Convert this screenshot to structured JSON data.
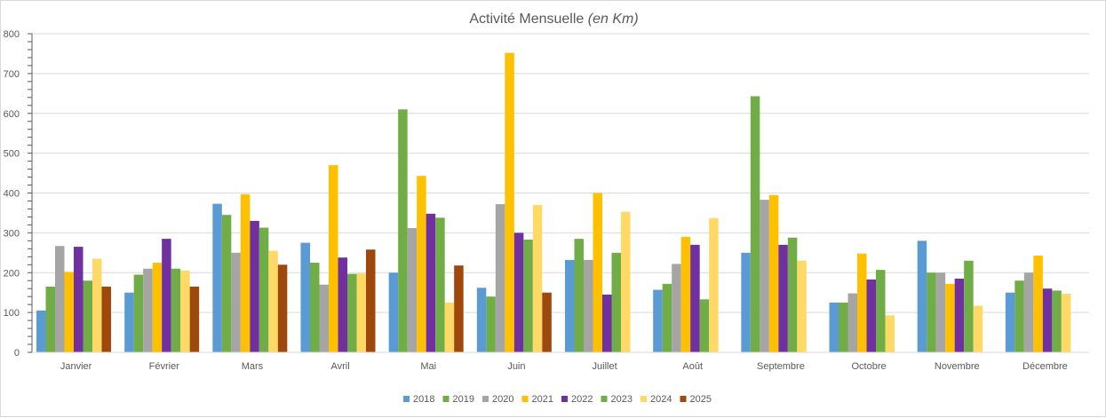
{
  "chart_data": {
    "type": "bar",
    "title": "Activité Mensuelle",
    "title_suffix": "(en Km)",
    "xlabel": "",
    "ylabel": "",
    "ylim": [
      0,
      800
    ],
    "yticks": [
      0,
      100,
      200,
      300,
      400,
      500,
      600,
      700,
      800
    ],
    "grid": true,
    "legend_position": "bottom",
    "categories": [
      "Janvier",
      "Février",
      "Mars",
      "Avril",
      "Mai",
      "Juin",
      "Juillet",
      "Août",
      "Septembre",
      "Octobre",
      "Novembre",
      "Décembre"
    ],
    "series": [
      {
        "name": "2018",
        "color": "#5B9BD5",
        "values": [
          105,
          150,
          373,
          275,
          200,
          162,
          232,
          157,
          250,
          125,
          280,
          150
        ]
      },
      {
        "name": "2019",
        "color": "#70AD47",
        "values": [
          165,
          195,
          345,
          225,
          610,
          140,
          285,
          172,
          643,
          125,
          200,
          180
        ]
      },
      {
        "name": "2020",
        "color": "#A5A5A5",
        "values": [
          267,
          210,
          250,
          170,
          312,
          372,
          232,
          222,
          383,
          148,
          200,
          200
        ]
      },
      {
        "name": "2021",
        "color": "#FFC000",
        "values": [
          202,
          225,
          397,
          470,
          443,
          752,
          400,
          290,
          395,
          248,
          172,
          243
        ]
      },
      {
        "name": "2022",
        "color": "#7030A0",
        "values": [
          265,
          285,
          330,
          238,
          348,
          300,
          145,
          270,
          270,
          183,
          185,
          160
        ]
      },
      {
        "name": "2023",
        "color": "#70AD47",
        "values": [
          180,
          210,
          313,
          197,
          338,
          283,
          250,
          133,
          288,
          207,
          230,
          155
        ]
      },
      {
        "name": "2024",
        "color": "#FFD966",
        "values": [
          235,
          205,
          255,
          198,
          125,
          370,
          353,
          337,
          230,
          93,
          117,
          147
        ]
      },
      {
        "name": "2025",
        "color": "#9E480E",
        "values": [
          165,
          165,
          220,
          258,
          218,
          150,
          null,
          null,
          null,
          null,
          null,
          null
        ]
      }
    ]
  }
}
